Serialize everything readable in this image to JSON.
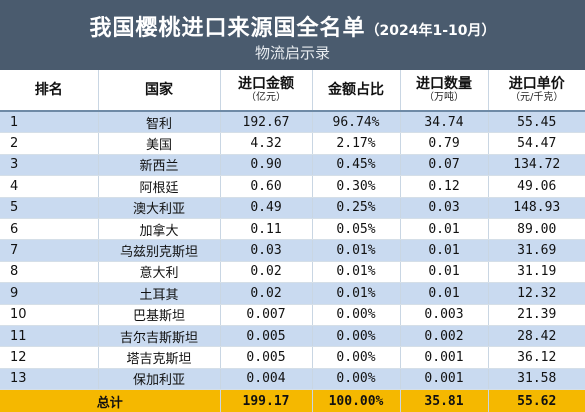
{
  "header": {
    "title": "我国樱桃进口来源国全名单",
    "title_period": "（2024年1-10月）",
    "source": "物流启示录"
  },
  "columns": [
    {
      "label": "排名",
      "unit": ""
    },
    {
      "label": "国家",
      "unit": ""
    },
    {
      "label": "进口金额",
      "unit": "（亿元）"
    },
    {
      "label": "金额占比",
      "unit": ""
    },
    {
      "label": "进口数量",
      "unit": "（万吨）"
    },
    {
      "label": "进口单价",
      "unit": "（元/千克）"
    }
  ],
  "rows": [
    {
      "rank": "1",
      "country": "智利",
      "amount": "192.67",
      "share": "96.74%",
      "quantity": "34.74",
      "price": "55.45"
    },
    {
      "rank": "2",
      "country": "美国",
      "amount": "4.32",
      "share": "2.17%",
      "quantity": "0.79",
      "price": "54.47"
    },
    {
      "rank": "3",
      "country": "新西兰",
      "amount": "0.90",
      "share": "0.45%",
      "quantity": "0.07",
      "price": "134.72"
    },
    {
      "rank": "4",
      "country": "阿根廷",
      "amount": "0.60",
      "share": "0.30%",
      "quantity": "0.12",
      "price": "49.06"
    },
    {
      "rank": "5",
      "country": "澳大利亚",
      "amount": "0.49",
      "share": "0.25%",
      "quantity": "0.03",
      "price": "148.93"
    },
    {
      "rank": "6",
      "country": "加拿大",
      "amount": "0.11",
      "share": "0.05%",
      "quantity": "0.01",
      "price": "89.00"
    },
    {
      "rank": "7",
      "country": "乌兹别克斯坦",
      "amount": "0.03",
      "share": "0.01%",
      "quantity": "0.01",
      "price": "31.69"
    },
    {
      "rank": "8",
      "country": "意大利",
      "amount": "0.02",
      "share": "0.01%",
      "quantity": "0.01",
      "price": "31.19"
    },
    {
      "rank": "9",
      "country": "土耳其",
      "amount": "0.02",
      "share": "0.01%",
      "quantity": "0.01",
      "price": "12.32"
    },
    {
      "rank": "10",
      "country": "巴基斯坦",
      "amount": "0.007",
      "share": "0.00%",
      "quantity": "0.003",
      "price": "21.39"
    },
    {
      "rank": "11",
      "country": "吉尔吉斯斯坦",
      "amount": "0.005",
      "share": "0.00%",
      "quantity": "0.002",
      "price": "28.42"
    },
    {
      "rank": "12",
      "country": "塔吉克斯坦",
      "amount": "0.005",
      "share": "0.00%",
      "quantity": "0.001",
      "price": "36.12"
    },
    {
      "rank": "13",
      "country": "保加利亚",
      "amount": "0.004",
      "share": "0.00%",
      "quantity": "0.001",
      "price": "31.58"
    }
  ],
  "total": {
    "label": "总计",
    "amount": "199.17",
    "share": "100.00%",
    "quantity": "35.81",
    "price": "55.62"
  },
  "colors": {
    "header_bg": "#4a5b6e",
    "stripe": "#c9daf0",
    "total_bg": "#f5b800"
  }
}
